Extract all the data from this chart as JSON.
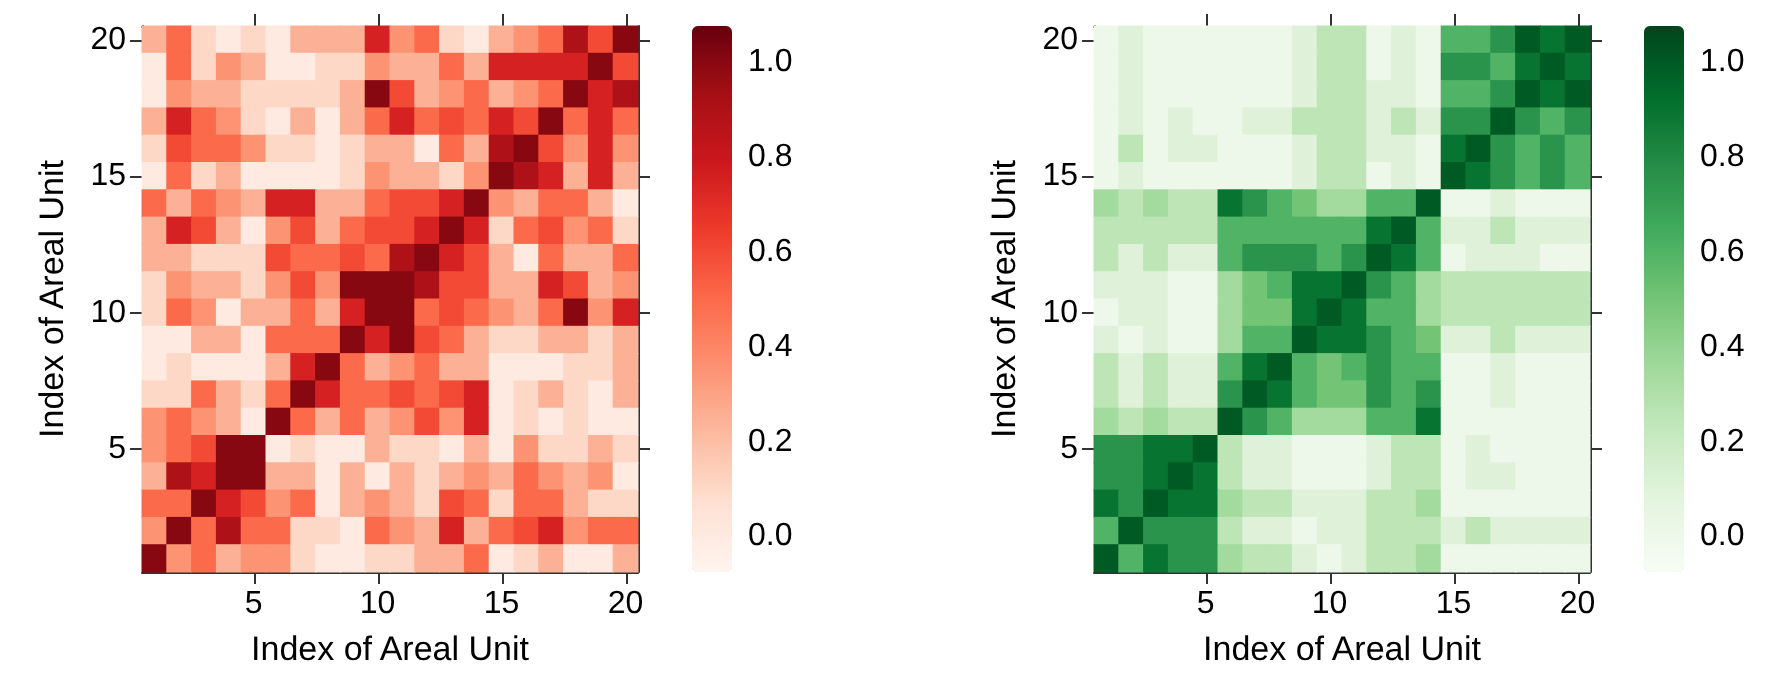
{
  "chart_data": [
    {
      "type": "heatmap",
      "xlabel": "Index of Areal Unit",
      "ylabel": "Index of Areal Unit",
      "categories": [
        null,
        null,
        null,
        null,
        "5",
        null,
        null,
        null,
        null,
        "10",
        null,
        null,
        null,
        null,
        "15",
        null,
        null,
        null,
        null,
        "20"
      ],
      "y_categories": [
        "20",
        null,
        null,
        null,
        null,
        "15",
        null,
        null,
        null,
        null,
        "10",
        null,
        null,
        null,
        null,
        "5",
        null,
        null,
        null,
        null
      ],
      "colors": [
        "#fff5f0",
        "#fee0d2",
        "#fcbba1",
        "#fc9272",
        "#fb6a4a",
        "#ef3b2c",
        "#cb181d",
        "#a50f15",
        "#67000d"
      ],
      "clim": [
        -0.075,
        1.077
      ],
      "cticks": [
        {
          "value": 0,
          "label": "0.0"
        },
        {
          "value": 0.2,
          "label": "0.2"
        },
        {
          "value": 0.4,
          "label": "0.4"
        },
        {
          "value": 0.6,
          "label": "0.6"
        },
        {
          "value": 0.8,
          "label": "0.8"
        },
        {
          "value": 1,
          "label": "1.0"
        }
      ],
      "cells": [
        [
          0.25,
          0.5,
          0.1,
          0,
          0.1,
          0,
          0.25,
          0.25,
          0.25,
          0.75,
          0.35,
          0.5,
          0.1,
          0,
          0.25,
          0.35,
          0.5,
          0.9,
          0.6,
          1
        ],
        [
          0,
          0.5,
          0.1,
          0.35,
          0.25,
          0,
          0,
          0.1,
          0.1,
          0.35,
          0.25,
          0.25,
          0.5,
          0.25,
          0.75,
          0.75,
          0.75,
          0.75,
          1,
          0.6
        ],
        [
          0,
          0.35,
          0.25,
          0.25,
          0.1,
          0.1,
          0.1,
          0.1,
          0.25,
          1,
          0.6,
          0.25,
          0.35,
          0.5,
          0.25,
          0.35,
          0.5,
          1,
          0.75,
          0.9
        ],
        [
          0.25,
          0.75,
          0.5,
          0.35,
          0.1,
          0,
          0.25,
          0,
          0.25,
          0.5,
          0.75,
          0.5,
          0.6,
          0.5,
          0.75,
          0.6,
          1,
          0.5,
          0.75,
          0.5
        ],
        [
          0.1,
          0.6,
          0.5,
          0.5,
          0.35,
          0.1,
          0.1,
          0,
          0.1,
          0.25,
          0.25,
          0,
          0.5,
          0.25,
          0.9,
          1,
          0.6,
          0.35,
          0.75,
          0.35
        ],
        [
          0,
          0.5,
          0.1,
          0.25,
          0,
          0,
          0,
          0,
          0.1,
          0.35,
          0.25,
          0.25,
          0.1,
          0.35,
          1,
          0.9,
          0.75,
          0.25,
          0.75,
          0.25
        ],
        [
          0.5,
          0.25,
          0.5,
          0.35,
          0.25,
          0.75,
          0.75,
          0.25,
          0.25,
          0.5,
          0.6,
          0.6,
          0.75,
          1,
          0.35,
          0.25,
          0.5,
          0.5,
          0.25,
          0
        ],
        [
          0.25,
          0.75,
          0.6,
          0.25,
          0,
          0.35,
          0.6,
          0.25,
          0.5,
          0.6,
          0.6,
          0.75,
          1,
          0.75,
          0.1,
          0.5,
          0.6,
          0.35,
          0.5,
          0.1
        ],
        [
          0.25,
          0.25,
          0.1,
          0.1,
          0.1,
          0.6,
          0.5,
          0.5,
          0.6,
          0.5,
          0.9,
          1,
          0.75,
          0.6,
          0.25,
          0,
          0.5,
          0.25,
          0.25,
          0.5
        ],
        [
          0.1,
          0.35,
          0.25,
          0.25,
          0.1,
          0.35,
          0.6,
          0.35,
          1,
          1,
          1,
          0.9,
          0.6,
          0.6,
          0.25,
          0.25,
          0.75,
          0.6,
          0.25,
          0.35
        ],
        [
          0.1,
          0.5,
          0.35,
          0,
          0.25,
          0.25,
          0.5,
          0.25,
          0.75,
          1,
          1,
          0.5,
          0.6,
          0.5,
          0.35,
          0.25,
          0.5,
          1,
          0.35,
          0.75
        ],
        [
          0,
          0,
          0.25,
          0.25,
          0,
          0.5,
          0.5,
          0.5,
          1,
          0.75,
          1,
          0.6,
          0.5,
          0.25,
          0.1,
          0.1,
          0.25,
          0.25,
          0.1,
          0.25
        ],
        [
          0,
          0.1,
          0,
          0,
          0,
          0.25,
          0.75,
          1,
          0.5,
          0.25,
          0.35,
          0.5,
          0.25,
          0.25,
          0,
          0,
          0,
          0.1,
          0.1,
          0.25
        ],
        [
          0.1,
          0.1,
          0.5,
          0.25,
          0.1,
          0.5,
          1,
          0.75,
          0.5,
          0.5,
          0.6,
          0.5,
          0.6,
          0.75,
          0,
          0.1,
          0.25,
          0.1,
          0,
          0.25
        ],
        [
          0.35,
          0.5,
          0.35,
          0.25,
          0,
          1,
          0.5,
          0.25,
          0.5,
          0.25,
          0.35,
          0.6,
          0.35,
          0.75,
          0,
          0.1,
          0,
          0.1,
          0,
          0
        ],
        [
          0.35,
          0.5,
          0.6,
          1,
          1,
          0,
          0.1,
          0,
          0,
          0.25,
          0.1,
          0.1,
          0,
          0.25,
          0,
          0.35,
          0.1,
          0.1,
          0.25,
          0.1
        ],
        [
          0.25,
          0.9,
          0.75,
          1,
          1,
          0.25,
          0.25,
          0,
          0.25,
          0,
          0.25,
          0.1,
          0.25,
          0.35,
          0.25,
          0.5,
          0.35,
          0.25,
          0.35,
          0
        ],
        [
          0.5,
          0.5,
          1,
          0.75,
          0.6,
          0.35,
          0.5,
          0,
          0.25,
          0.35,
          0.25,
          0.1,
          0.6,
          0.5,
          0.1,
          0.5,
          0.5,
          0.25,
          0.1,
          0.1
        ],
        [
          0.35,
          1,
          0.5,
          0.9,
          0.5,
          0.5,
          0.1,
          0.1,
          0,
          0.5,
          0.35,
          0.25,
          0.75,
          0.25,
          0.5,
          0.6,
          0.75,
          0.35,
          0.5,
          0.5
        ],
        [
          1,
          0.35,
          0.5,
          0.25,
          0.35,
          0.35,
          0.1,
          0,
          0,
          0.1,
          0.1,
          0.25,
          0.25,
          0.5,
          0,
          0.1,
          0.25,
          0,
          0,
          0.25
        ]
      ]
    },
    {
      "type": "heatmap",
      "xlabel": "Index of Areal Unit",
      "ylabel": "Index of Areal Unit",
      "categories": [
        null,
        null,
        null,
        null,
        "5",
        null,
        null,
        null,
        null,
        "10",
        null,
        null,
        null,
        null,
        "15",
        null,
        null,
        null,
        null,
        "20"
      ],
      "y_categories": [
        "20",
        null,
        null,
        null,
        null,
        "15",
        null,
        null,
        null,
        null,
        "10",
        null,
        null,
        null,
        null,
        "5",
        null,
        null,
        null,
        null
      ],
      "colors": [
        "#f7fcf5",
        "#e5f5e0",
        "#c7e9c0",
        "#a1d99b",
        "#74c476",
        "#41ab5d",
        "#238b45",
        "#006d2c",
        "#00441b"
      ],
      "clim": [
        -0.075,
        1.077
      ],
      "cticks": [
        {
          "value": 0,
          "label": "0.0"
        },
        {
          "value": 0.2,
          "label": "0.2"
        },
        {
          "value": 0.4,
          "label": "0.4"
        },
        {
          "value": 0.6,
          "label": "0.6"
        },
        {
          "value": 0.8,
          "label": "0.8"
        },
        {
          "value": 1,
          "label": "1.0"
        }
      ],
      "cells": [
        [
          0,
          0.1,
          0,
          0,
          0,
          0,
          0,
          0,
          0.1,
          0.25,
          0.25,
          0,
          0.1,
          0,
          0.6,
          0.6,
          0.75,
          1,
          0.9,
          1
        ],
        [
          0,
          0.1,
          0,
          0,
          0,
          0,
          0,
          0,
          0.1,
          0.25,
          0.25,
          0,
          0.1,
          0,
          0.75,
          0.75,
          0.6,
          0.9,
          1,
          0.9
        ],
        [
          0,
          0.1,
          0,
          0,
          0,
          0,
          0,
          0,
          0.1,
          0.25,
          0.25,
          0.1,
          0.1,
          0,
          0.6,
          0.6,
          0.75,
          1,
          0.9,
          1
        ],
        [
          0,
          0.1,
          0,
          0.1,
          0,
          0,
          0.1,
          0.1,
          0.25,
          0.25,
          0.25,
          0.1,
          0.25,
          0.1,
          0.75,
          0.75,
          1,
          0.75,
          0.6,
          0.75
        ],
        [
          0,
          0.25,
          0,
          0.1,
          0.1,
          0,
          0,
          0,
          0.1,
          0.25,
          0.25,
          0.1,
          0.1,
          0,
          0.9,
          1,
          0.75,
          0.6,
          0.75,
          0.6
        ],
        [
          0,
          0.1,
          0,
          0,
          0,
          0,
          0,
          0,
          0.1,
          0.25,
          0.25,
          0,
          0.1,
          0,
          1,
          0.9,
          0.75,
          0.6,
          0.75,
          0.6
        ],
        [
          0.35,
          0.25,
          0.35,
          0.25,
          0.25,
          0.9,
          0.75,
          0.6,
          0.5,
          0.35,
          0.35,
          0.6,
          0.6,
          1,
          0,
          0,
          0.1,
          0,
          0,
          0
        ],
        [
          0.25,
          0.25,
          0.25,
          0.25,
          0.25,
          0.6,
          0.6,
          0.6,
          0.6,
          0.6,
          0.6,
          0.9,
          1,
          0.6,
          0.1,
          0.1,
          0.25,
          0.1,
          0.1,
          0.1
        ],
        [
          0.25,
          0.1,
          0.25,
          0.1,
          0.1,
          0.6,
          0.75,
          0.75,
          0.75,
          0.6,
          0.75,
          1,
          0.9,
          0.6,
          0,
          0.1,
          0.1,
          0.1,
          0,
          0
        ],
        [
          0.1,
          0.1,
          0.1,
          0,
          0,
          0.35,
          0.5,
          0.6,
          0.9,
          0.9,
          1,
          0.75,
          0.6,
          0.35,
          0.25,
          0.25,
          0.25,
          0.25,
          0.25,
          0.25
        ],
        [
          0,
          0.1,
          0.1,
          0,
          0,
          0.35,
          0.5,
          0.5,
          0.9,
          1,
          0.9,
          0.6,
          0.6,
          0.35,
          0.25,
          0.25,
          0.25,
          0.25,
          0.25,
          0.25
        ],
        [
          0.1,
          0,
          0.1,
          0,
          0,
          0.35,
          0.6,
          0.6,
          1,
          0.9,
          0.9,
          0.75,
          0.6,
          0.5,
          0.1,
          0.1,
          0.25,
          0.1,
          0.1,
          0.1
        ],
        [
          0.25,
          0.1,
          0.25,
          0.1,
          0.1,
          0.6,
          0.9,
          1,
          0.6,
          0.5,
          0.6,
          0.75,
          0.6,
          0.6,
          0,
          0,
          0.1,
          0,
          0,
          0
        ],
        [
          0.25,
          0.1,
          0.25,
          0.1,
          0.1,
          0.75,
          1,
          0.9,
          0.6,
          0.5,
          0.5,
          0.75,
          0.6,
          0.75,
          0,
          0,
          0.1,
          0,
          0,
          0
        ],
        [
          0.35,
          0.25,
          0.35,
          0.25,
          0.25,
          1,
          0.75,
          0.6,
          0.35,
          0.35,
          0.35,
          0.6,
          0.6,
          0.9,
          0,
          0,
          0,
          0,
          0,
          0
        ],
        [
          0.75,
          0.75,
          0.9,
          0.9,
          1,
          0.25,
          0.1,
          0.1,
          0,
          0,
          0,
          0.1,
          0.25,
          0.25,
          0,
          0.1,
          0,
          0,
          0,
          0
        ],
        [
          0.75,
          0.75,
          0.9,
          1,
          0.9,
          0.25,
          0.1,
          0.1,
          0,
          0,
          0,
          0.1,
          0.25,
          0.25,
          0,
          0.1,
          0.1,
          0,
          0,
          0
        ],
        [
          0.9,
          0.75,
          1,
          0.9,
          0.9,
          0.35,
          0.25,
          0.25,
          0.1,
          0.1,
          0.1,
          0.25,
          0.25,
          0.35,
          0,
          0,
          0,
          0,
          0,
          0
        ],
        [
          0.6,
          1,
          0.75,
          0.75,
          0.75,
          0.25,
          0.1,
          0.1,
          0,
          0.1,
          0.1,
          0.25,
          0.25,
          0.25,
          0.1,
          0.25,
          0.1,
          0.1,
          0.1,
          0.1
        ],
        [
          1,
          0.6,
          0.9,
          0.75,
          0.75,
          0.35,
          0.25,
          0.25,
          0.1,
          0,
          0.1,
          0.25,
          0.25,
          0.35,
          0,
          0,
          0,
          0,
          0,
          0
        ]
      ]
    }
  ]
}
